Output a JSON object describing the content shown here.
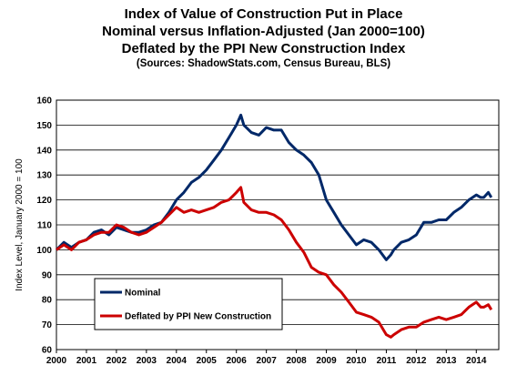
{
  "chart_data": {
    "type": "line",
    "title": "Index of Value of Construction Put in Place",
    "subtitle": "Nominal versus Inflation-Adjusted  (Jan 2000=100)",
    "subtitle2": "Deflated by the PPI New Construction Index",
    "sources": "(Sources: ShadowStats.com, Census Bureau, BLS)",
    "ylabel": "Index Level, January 2000 = 100",
    "xlabel": "",
    "ylim": [
      60,
      160
    ],
    "y_ticks": [
      "60",
      "70",
      "80",
      "90",
      "100",
      "110",
      "120",
      "130",
      "140",
      "150",
      "160"
    ],
    "x_ticks": [
      "2000",
      "2001",
      "2002",
      "2003",
      "2004",
      "2005",
      "2006",
      "2007",
      "2008",
      "2009",
      "2010",
      "2011",
      "2012",
      "2013",
      "2014"
    ],
    "xlim": [
      2000,
      2014.75
    ],
    "grid": "horizontal",
    "legend_position": "lower-left",
    "series": [
      {
        "name": "Nominal",
        "color": "#002868",
        "x": [
          2000.0,
          2000.25,
          2000.5,
          2000.75,
          2001.0,
          2001.25,
          2001.5,
          2001.75,
          2002.0,
          2002.25,
          2002.5,
          2002.75,
          2003.0,
          2003.25,
          2003.5,
          2003.75,
          2004.0,
          2004.25,
          2004.5,
          2004.75,
          2005.0,
          2005.25,
          2005.5,
          2005.75,
          2006.0,
          2006.15,
          2006.25,
          2006.5,
          2006.75,
          2007.0,
          2007.25,
          2007.5,
          2007.75,
          2008.0,
          2008.25,
          2008.5,
          2008.75,
          2009.0,
          2009.25,
          2009.5,
          2009.75,
          2010.0,
          2010.25,
          2010.5,
          2010.75,
          2011.0,
          2011.15,
          2011.25,
          2011.5,
          2011.75,
          2012.0,
          2012.25,
          2012.5,
          2012.75,
          2013.0,
          2013.25,
          2013.5,
          2013.75,
          2014.0,
          2014.15,
          2014.25,
          2014.4,
          2014.5
        ],
        "values": [
          100,
          103,
          101,
          103,
          104,
          107,
          108,
          106,
          109,
          108,
          107,
          107,
          108,
          110,
          111,
          115,
          120,
          123,
          127,
          129,
          132,
          136,
          140,
          145,
          150,
          154,
          150,
          147,
          146,
          149,
          148,
          148,
          143,
          140,
          138,
          135,
          130,
          120,
          115,
          110,
          106,
          102,
          104,
          103,
          100,
          96,
          98,
          100,
          103,
          104,
          106,
          111,
          111,
          112,
          112,
          115,
          117,
          120,
          122,
          121,
          121,
          123,
          121
        ]
      },
      {
        "name": "Deflated by PPI New Construction",
        "color": "#cc0000",
        "x": [
          2000.0,
          2000.25,
          2000.5,
          2000.75,
          2001.0,
          2001.25,
          2001.5,
          2001.75,
          2002.0,
          2002.25,
          2002.5,
          2002.75,
          2003.0,
          2003.25,
          2003.5,
          2003.75,
          2004.0,
          2004.25,
          2004.5,
          2004.75,
          2005.0,
          2005.25,
          2005.5,
          2005.75,
          2006.0,
          2006.15,
          2006.25,
          2006.5,
          2006.75,
          2007.0,
          2007.25,
          2007.5,
          2007.75,
          2008.0,
          2008.25,
          2008.5,
          2008.75,
          2009.0,
          2009.25,
          2009.5,
          2009.75,
          2010.0,
          2010.25,
          2010.5,
          2010.75,
          2011.0,
          2011.15,
          2011.25,
          2011.5,
          2011.75,
          2012.0,
          2012.25,
          2012.5,
          2012.75,
          2013.0,
          2013.25,
          2013.5,
          2013.75,
          2014.0,
          2014.15,
          2014.25,
          2014.4,
          2014.5
        ],
        "values": [
          100,
          102,
          100,
          103,
          104,
          106,
          107,
          107,
          110,
          109,
          107,
          106,
          107,
          109,
          111,
          114,
          117,
          115,
          116,
          115,
          116,
          117,
          119,
          120,
          123,
          125,
          119,
          116,
          115,
          115,
          114,
          112,
          108,
          103,
          99,
          93,
          91,
          90,
          86,
          83,
          79,
          75,
          74,
          73,
          71,
          66,
          65,
          66,
          68,
          69,
          69,
          71,
          72,
          73,
          72,
          73,
          74,
          77,
          79,
          77,
          77,
          78,
          76
        ]
      }
    ]
  }
}
